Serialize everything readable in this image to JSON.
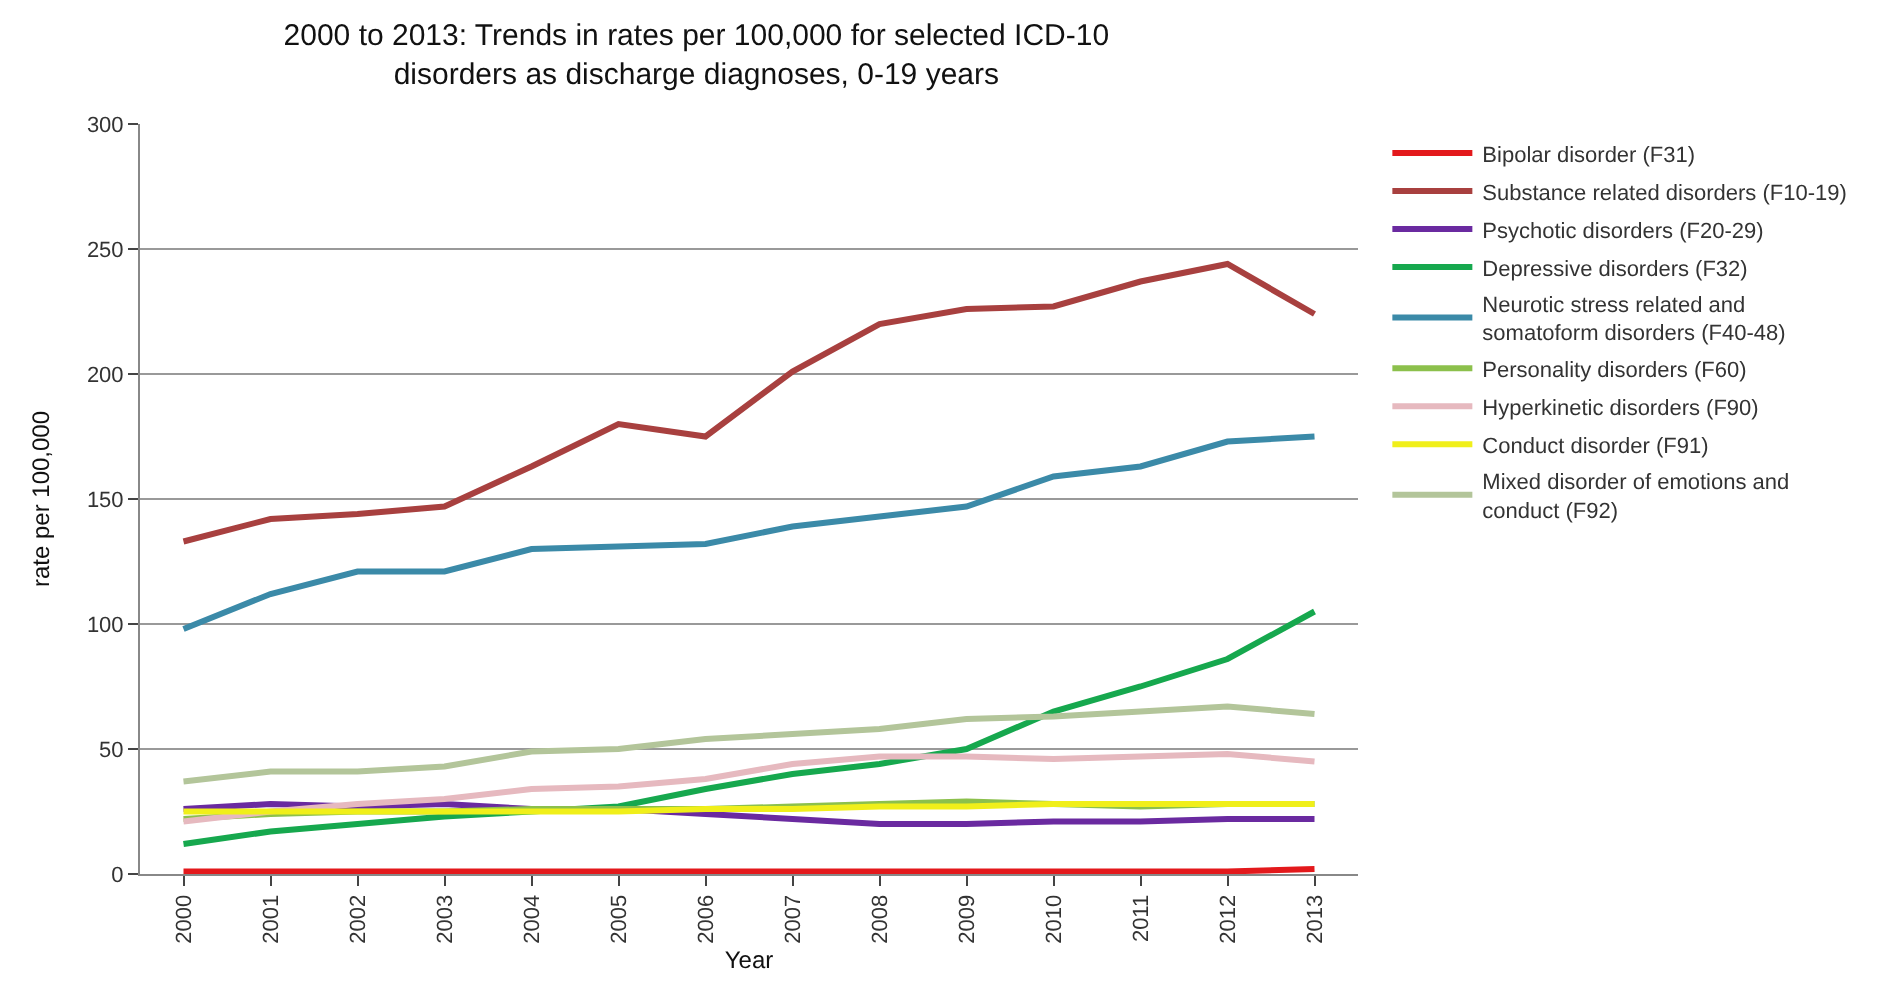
{
  "chart_data": {
    "type": "line",
    "title": "2000 to 2013: Trends in rates per 100,000 for selected ICD-10 disorders as discharge diagnoses, 0-19 years",
    "xlabel": "Year",
    "ylabel": "rate per 100,000",
    "categories": [
      "2000",
      "2001",
      "2002",
      "2003",
      "2004",
      "2005",
      "2006",
      "2007",
      "2008",
      "2009",
      "2010",
      "2011",
      "2012",
      "2013"
    ],
    "ylim": [
      0,
      300
    ],
    "yticks": [
      0,
      50,
      100,
      150,
      200,
      250,
      300
    ],
    "grid": "y",
    "legend": "right",
    "marker": "none",
    "line_style": "solid",
    "series": [
      {
        "name": "Bipolar disorder (F31)",
        "color": "#e3191c",
        "values": [
          1,
          1,
          1,
          1,
          1,
          1,
          1,
          1,
          1,
          1,
          1,
          1,
          1,
          2
        ]
      },
      {
        "name": "Substance related disorders (F10-19)",
        "color": "#a8403f",
        "values": [
          133,
          142,
          144,
          147,
          163,
          180,
          175,
          201,
          220,
          226,
          227,
          237,
          244,
          224
        ]
      },
      {
        "name": "Psychotic disorders (F20-29)",
        "color": "#6a2aa0",
        "values": [
          26,
          28,
          27,
          28,
          26,
          26,
          24,
          22,
          20,
          20,
          21,
          21,
          22,
          22
        ]
      },
      {
        "name": "Depressive disorders (F32)",
        "color": "#16a84e",
        "values": [
          12,
          17,
          20,
          23,
          25,
          27,
          34,
          40,
          44,
          50,
          65,
          75,
          86,
          105
        ]
      },
      {
        "name": "Neurotic stress related and somatoform disorders (F40-48)",
        "color": "#3b8aa8",
        "values": [
          98,
          112,
          121,
          121,
          130,
          131,
          132,
          139,
          143,
          147,
          159,
          163,
          173,
          175
        ]
      },
      {
        "name": "Personality disorders (F60)",
        "color": "#8cc04c",
        "values": [
          22,
          24,
          25,
          25,
          26,
          26,
          26,
          27,
          28,
          29,
          28,
          27,
          28,
          28
        ]
      },
      {
        "name": "Hyperkinetic disorders (F90)",
        "color": "#e6b9bf",
        "values": [
          21,
          25,
          28,
          30,
          34,
          35,
          38,
          44,
          47,
          47,
          46,
          47,
          48,
          45
        ]
      },
      {
        "name": "Conduct disorder (F91)",
        "color": "#f0ef1a",
        "values": [
          25,
          25,
          25,
          25,
          25,
          25,
          26,
          26,
          27,
          27,
          28,
          28,
          28,
          28
        ]
      },
      {
        "name": "Mixed disorder of emotions and conduct (F92)",
        "color": "#b3c59a",
        "values": [
          37,
          41,
          41,
          43,
          49,
          50,
          54,
          56,
          58,
          62,
          63,
          65,
          67,
          64
        ]
      }
    ]
  }
}
